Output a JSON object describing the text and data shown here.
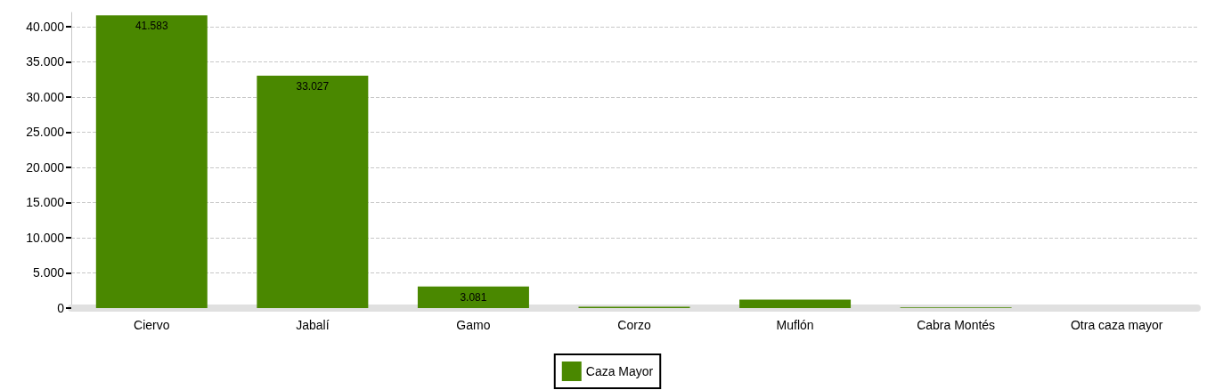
{
  "chart_data": {
    "type": "bar",
    "categories": [
      "Ciervo",
      "Jabalí",
      "Gamo",
      "Corzo",
      "Muflón",
      "Cabra Montés",
      "Otra caza mayor"
    ],
    "series": [
      {
        "name": "Caza Mayor",
        "color": "#4a8800",
        "values": [
          41583,
          33027,
          3081,
          200,
          1200,
          100,
          0
        ],
        "value_labels": [
          "41.583",
          "33.027",
          "3.081",
          null,
          null,
          null,
          null
        ]
      }
    ],
    "ylim": [
      0,
      42000
    ],
    "yticks": [
      {
        "value": 0,
        "label": "0"
      },
      {
        "value": 5000,
        "label": "5.000"
      },
      {
        "value": 10000,
        "label": "10.000"
      },
      {
        "value": 15000,
        "label": "15.000"
      },
      {
        "value": 20000,
        "label": "20.000"
      },
      {
        "value": 25000,
        "label": "25.000"
      },
      {
        "value": 30000,
        "label": "30.000"
      },
      {
        "value": 35000,
        "label": "35.000"
      },
      {
        "value": 40000,
        "label": "40.000"
      }
    ],
    "grid": "y",
    "legend": "bottom"
  }
}
